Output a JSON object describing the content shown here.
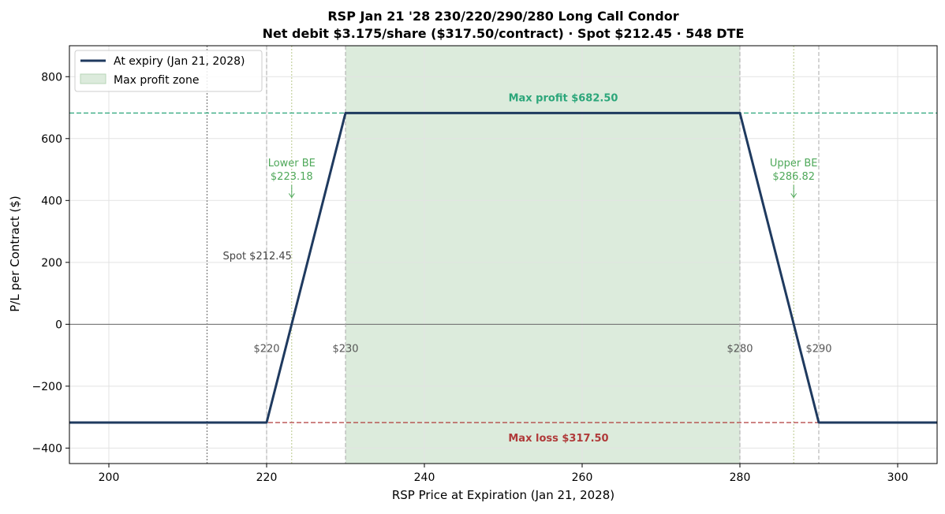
{
  "chart_data": {
    "type": "line",
    "title_line1": "RSP Jan 21 '28 230/220/290/280 Long Call Condor",
    "title_line2": "Net debit $3.175/share ($317.50/contract) · Spot $212.45 · 548 DTE",
    "xlabel": "RSP Price at Expiration (Jan 21, 2028)",
    "ylabel": "P/L per Contract ($)",
    "xlim": [
      195,
      305
    ],
    "ylim": [
      -450,
      900
    ],
    "xticks": [
      200,
      220,
      240,
      260,
      280,
      300
    ],
    "yticks": [
      -400,
      -200,
      0,
      200,
      400,
      600,
      800
    ],
    "ytick_labels": [
      "−400",
      "−200",
      "0",
      "200",
      "400",
      "600",
      "800"
    ],
    "grid": true,
    "legend_position": "top-left",
    "series": [
      {
        "name": "At expiry (Jan 21, 2028)",
        "color": "#1f3a5f",
        "x": [
          195,
          220,
          230,
          280,
          290,
          305
        ],
        "y": [
          -317.5,
          -317.5,
          682.5,
          682.5,
          -317.5,
          -317.5
        ]
      }
    ],
    "max_profit_zone": {
      "label": "Max profit zone",
      "x0": 230,
      "x1": 280,
      "color": "#dcebdc"
    },
    "max_profit": {
      "value": 682.5,
      "label": "Max profit $682.50",
      "color": "#2ca67a"
    },
    "max_loss": {
      "value": -317.5,
      "label": "Max loss $317.50",
      "color": "#b03a3a"
    },
    "spot": {
      "value": 212.45,
      "label": "Spot $212.45"
    },
    "breakevens": [
      {
        "value": 223.18,
        "label_line1": "Lower BE",
        "label_line2": "$223.18"
      },
      {
        "value": 286.82,
        "label_line1": "Upper BE",
        "label_line2": "$286.82"
      }
    ],
    "be_color": "#4fa85a",
    "strikes": [
      {
        "value": 220,
        "label": "$220"
      },
      {
        "value": 230,
        "label": "$230"
      },
      {
        "value": 280,
        "label": "$280"
      },
      {
        "value": 290,
        "label": "$290"
      }
    ]
  }
}
